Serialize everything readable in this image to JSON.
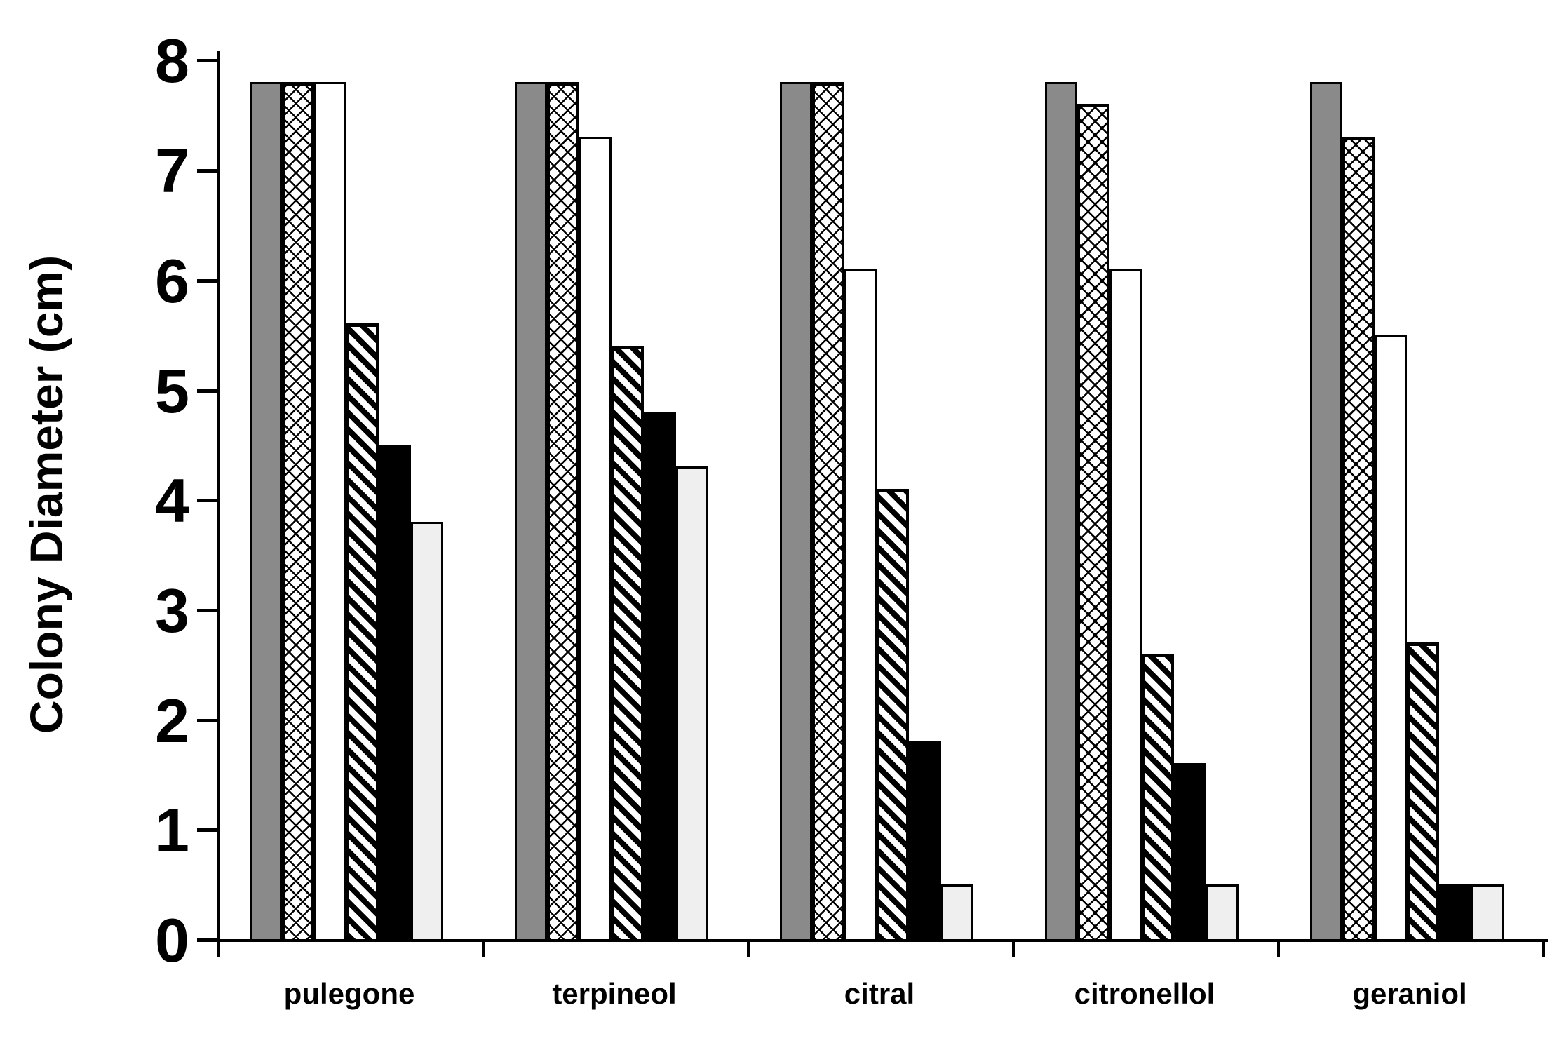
{
  "chart_data": {
    "type": "bar",
    "title": "",
    "xlabel": "",
    "ylabel": "Colony Diameter (cm)",
    "ylim": [
      0,
      8
    ],
    "yticks": [
      0,
      1,
      2,
      3,
      4,
      5,
      6,
      7,
      8
    ],
    "grid": false,
    "legend_position": "none",
    "categories": [
      "pulegone",
      "terpineol",
      "citral",
      "citronellol",
      "geraniol"
    ],
    "series": [
      {
        "name": "series-1-solid-gray",
        "pattern": "solid-gray",
        "values": [
          7.8,
          7.8,
          7.8,
          7.8,
          7.8
        ]
      },
      {
        "name": "series-2-crosshatch",
        "pattern": "crosshatch",
        "values": [
          7.8,
          7.8,
          7.8,
          7.6,
          7.3
        ]
      },
      {
        "name": "series-3-white",
        "pattern": "white",
        "values": [
          7.8,
          7.3,
          6.1,
          6.1,
          5.5
        ]
      },
      {
        "name": "series-4-diagonal",
        "pattern": "diagonal-stripes",
        "values": [
          5.6,
          5.4,
          4.1,
          2.6,
          2.7
        ]
      },
      {
        "name": "series-5-solid-black",
        "pattern": "solid-black",
        "values": [
          4.5,
          4.8,
          1.8,
          1.6,
          0.5
        ]
      },
      {
        "name": "series-6-light-gray",
        "pattern": "light-gray",
        "values": [
          3.8,
          4.3,
          0.5,
          0.5,
          0.5
        ]
      }
    ],
    "colors": {
      "bar_gray": "#8a8a8a",
      "bar_black": "#000000",
      "bar_white": "#ffffff",
      "bar_light_gray": "#efefef",
      "axis": "#000000",
      "background": "#ffffff"
    }
  }
}
